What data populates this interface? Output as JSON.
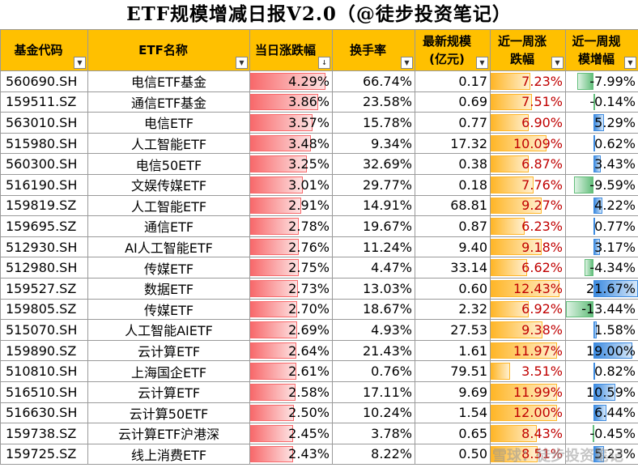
{
  "title": "ETF规模增减日报V2.0（@徒步投资笔记）",
  "columns": [
    "基金代码",
    "ETF名称",
    "当日涨跌幅",
    "换手率",
    "最新规模\n(亿元)",
    "近一周涨\n跌幅",
    "近一周规\n模增幅"
  ],
  "sort_indicator": "↓",
  "filter_icon": "▼",
  "colors": {
    "header": "#ffc000",
    "daily_bar": "#f8696b",
    "week_bar": "#ffb628",
    "growth_pos": "#3d8be0",
    "growth_neg": "#63be7b"
  },
  "rows": [
    {
      "code": "560690.SH",
      "name": "电信ETF基金",
      "daily": "4.29%",
      "turnover": "66.74%",
      "scale": "0.17",
      "week": "7.23%",
      "growth": "-7.99%"
    },
    {
      "code": "159511.SZ",
      "name": "通信ETF基金",
      "daily": "3.86%",
      "turnover": "23.58%",
      "scale": "0.69",
      "week": "7.51%",
      "growth": "-0.14%"
    },
    {
      "code": "563010.SH",
      "name": "电信ETF",
      "daily": "3.57%",
      "turnover": "15.78%",
      "scale": "0.77",
      "week": "6.90%",
      "growth": "5.29%"
    },
    {
      "code": "515980.SH",
      "name": "人工智能ETF",
      "daily": "3.48%",
      "turnover": "9.34%",
      "scale": "17.32",
      "week": "10.09%",
      "growth": "0.62%"
    },
    {
      "code": "560300.SH",
      "name": "电信50ETF",
      "daily": "3.25%",
      "turnover": "32.69%",
      "scale": "0.38",
      "week": "6.87%",
      "growth": "3.43%"
    },
    {
      "code": "516190.SH",
      "name": "文娱传媒ETF",
      "daily": "3.01%",
      "turnover": "29.77%",
      "scale": "0.18",
      "week": "7.76%",
      "growth": "-9.59%"
    },
    {
      "code": "159819.SZ",
      "name": "人工智能ETF",
      "daily": "2.91%",
      "turnover": "14.91%",
      "scale": "68.81",
      "week": "9.27%",
      "growth": "4.22%"
    },
    {
      "code": "159695.SZ",
      "name": "通信ETF",
      "daily": "2.78%",
      "turnover": "19.67%",
      "scale": "0.87",
      "week": "6.23%",
      "growth": "0.77%"
    },
    {
      "code": "512930.SH",
      "name": "AI人工智能ETF",
      "daily": "2.76%",
      "turnover": "11.24%",
      "scale": "9.40",
      "week": "9.18%",
      "growth": "3.17%"
    },
    {
      "code": "512980.SH",
      "name": "传媒ETF",
      "daily": "2.75%",
      "turnover": "4.47%",
      "scale": "33.14",
      "week": "6.62%",
      "growth": "-4.34%"
    },
    {
      "code": "159527.SZ",
      "name": "数据ETF",
      "daily": "2.73%",
      "turnover": "13.03%",
      "scale": "0.60",
      "week": "12.43%",
      "growth": "21.67%"
    },
    {
      "code": "159805.SZ",
      "name": "传媒ETF",
      "daily": "2.70%",
      "turnover": "18.67%",
      "scale": "2.32",
      "week": "6.92%",
      "growth": "-13.44%"
    },
    {
      "code": "515070.SH",
      "name": "人工智能AIETF",
      "daily": "2.69%",
      "turnover": "4.93%",
      "scale": "27.53",
      "week": "9.38%",
      "growth": "1.58%"
    },
    {
      "code": "159890.SZ",
      "name": "云计算ETF",
      "daily": "2.64%",
      "turnover": "21.43%",
      "scale": "1.61",
      "week": "11.97%",
      "growth": "19.00%"
    },
    {
      "code": "510810.SH",
      "name": "上海国企ETF",
      "daily": "2.61%",
      "turnover": "0.76%",
      "scale": "79.51",
      "week": "3.51%",
      "growth": "0.82%"
    },
    {
      "code": "516510.SH",
      "name": "云计算ETF",
      "daily": "2.58%",
      "turnover": "17.11%",
      "scale": "9.69",
      "week": "11.99%",
      "growth": "10.59%"
    },
    {
      "code": "516630.SH",
      "name": "云计算50ETF",
      "daily": "2.50%",
      "turnover": "10.24%",
      "scale": "1.54",
      "week": "12.00%",
      "growth": "6.44%"
    },
    {
      "code": "159738.SZ",
      "name": "云计算ETF沪港深",
      "daily": "2.45%",
      "turnover": "3.78%",
      "scale": "0.65",
      "week": "8.43%",
      "growth": "-0.45%"
    },
    {
      "code": "159725.SZ",
      "name": "线上消费ETF",
      "daily": "2.43%",
      "turnover": "8.22%",
      "scale": "0.50",
      "week": "8.51%",
      "growth": "5.23%"
    }
  ],
  "watermark": "雪球：徒步投资笔记"
}
